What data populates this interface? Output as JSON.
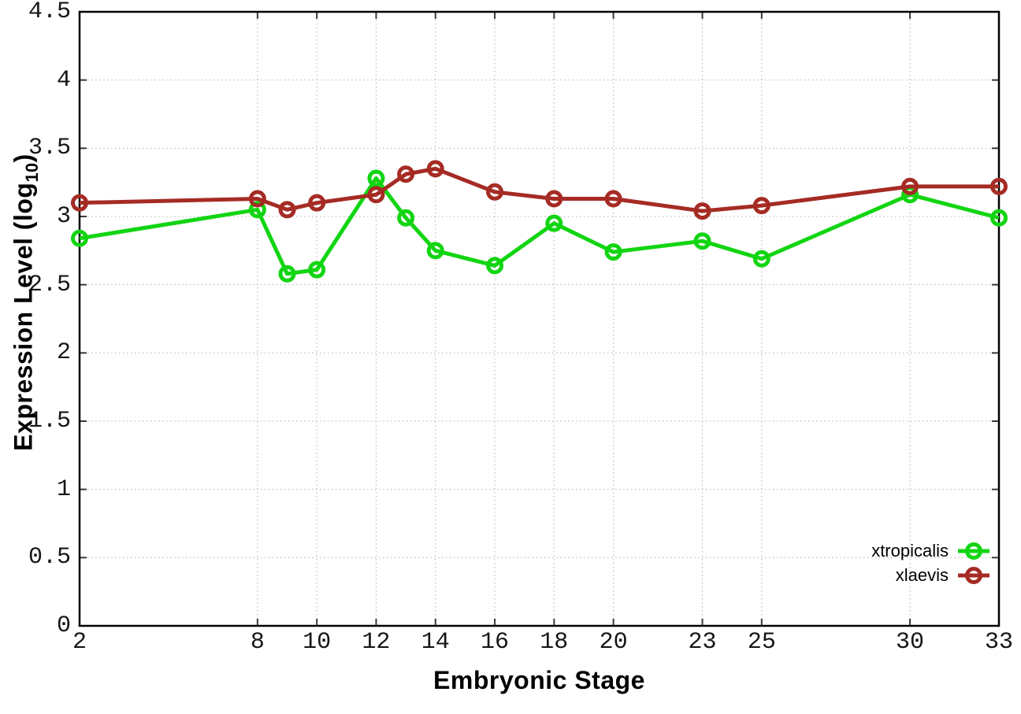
{
  "figure": {
    "background": "#ffffff"
  },
  "chart_data": {
    "type": "line",
    "title": "",
    "xlabel": "Embryonic Stage",
    "ylabel": "Expression Level (log10)",
    "ylabel_parts": {
      "prefix": "Expression Level (log",
      "sub": "10",
      "suffix": ")"
    },
    "xlim": [
      2,
      33
    ],
    "ylim": [
      0,
      4.5
    ],
    "x": [
      2,
      8,
      9,
      10,
      12,
      13,
      14,
      16,
      18,
      20,
      23,
      25,
      30,
      33
    ],
    "x_ticks": [
      "2",
      "8",
      "10",
      "12",
      "14",
      "16",
      "18",
      "20",
      "23",
      "25",
      "30",
      "33"
    ],
    "x_tick_values": [
      2,
      8,
      10,
      12,
      14,
      16,
      18,
      20,
      23,
      25,
      30,
      33
    ],
    "y_ticks": [
      "0",
      "0.5",
      "1",
      "1.5",
      "2",
      "2.5",
      "3",
      "3.5",
      "4",
      "4.5"
    ],
    "y_tick_values": [
      0,
      0.5,
      1,
      1.5,
      2,
      2.5,
      3,
      3.5,
      4,
      4.5
    ],
    "grid": true,
    "legend_position": "bottom-right",
    "series": [
      {
        "name": "xtropicalis",
        "color": "#12d512",
        "marker": "open-circle",
        "values": [
          2.84,
          3.05,
          2.58,
          2.61,
          3.28,
          2.99,
          2.75,
          2.64,
          2.95,
          2.74,
          2.82,
          2.69,
          3.16,
          2.99
        ]
      },
      {
        "name": "xlaevis",
        "color": "#a52b24",
        "marker": "open-circle",
        "values": [
          3.1,
          3.13,
          3.05,
          3.1,
          3.16,
          3.31,
          3.35,
          3.18,
          3.13,
          3.13,
          3.04,
          3.08,
          3.22,
          3.22
        ]
      }
    ],
    "axis_color": "#000000",
    "grid_color": "#b2b2b2",
    "tick_color": "#3a3a3a",
    "tick_label_color": "#161616"
  }
}
